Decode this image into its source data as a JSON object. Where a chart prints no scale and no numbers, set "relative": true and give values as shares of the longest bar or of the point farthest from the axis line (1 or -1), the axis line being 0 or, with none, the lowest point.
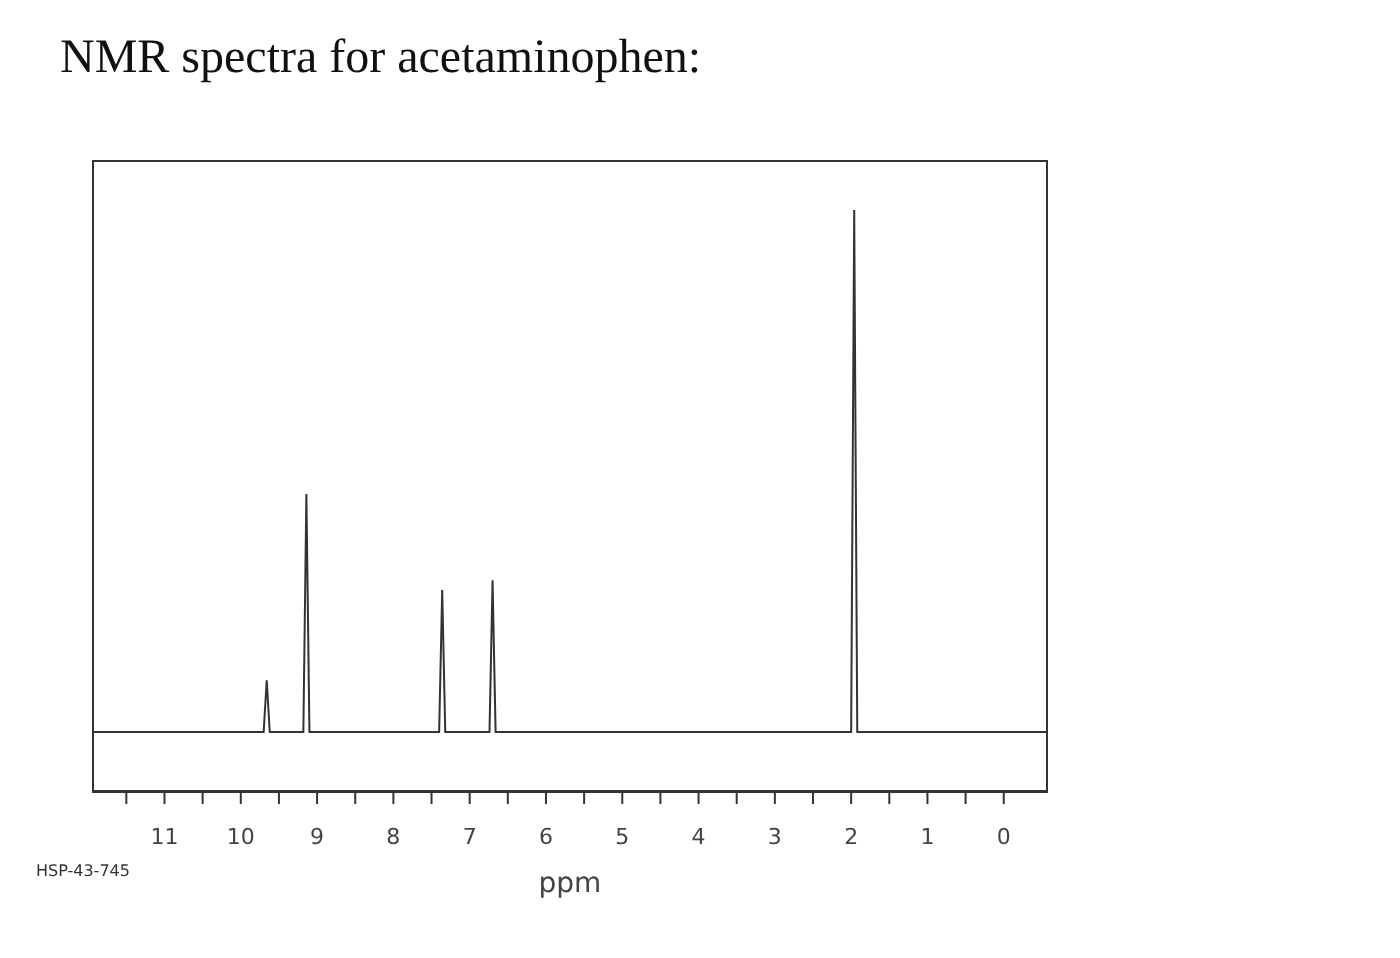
{
  "chart_data": {
    "type": "line",
    "title": "NMR spectra for acetaminophen:",
    "xlabel": "ppm",
    "annotations": [
      "HSP-43-745"
    ],
    "relative": true,
    "color": "#333333",
    "x": [
      11.95,
      9.7,
      9.66,
      9.62,
      9.18,
      9.14,
      9.1,
      7.4,
      7.36,
      7.32,
      6.74,
      6.7,
      6.66,
      2.0,
      1.96,
      1.92,
      -0.58
    ],
    "values": [
      0.103,
      0.103,
      0.192,
      0.103,
      0.103,
      0.512,
      0.103,
      0.103,
      0.347,
      0.103,
      0.103,
      0.364,
      0.103,
      0.103,
      1,
      0.103,
      0.103
    ],
    "xlim": [
      11.95,
      -0.58
    ],
    "xticks": [
      11,
      {
        "value": 10.5,
        "label": null
      },
      10,
      {
        "value": 9.5,
        "label": null
      },
      9,
      {
        "value": 8.5,
        "label": null
      },
      8,
      {
        "value": 7.5,
        "label": null
      },
      7,
      {
        "value": 6.5,
        "label": null
      },
      6,
      {
        "value": 5.5,
        "label": null
      },
      5,
      {
        "value": 4.5,
        "label": null
      },
      4,
      {
        "value": 3.5,
        "label": null
      },
      3,
      {
        "value": 2.5,
        "label": null
      },
      2,
      {
        "value": 1.5,
        "label": null
      },
      1,
      {
        "value": 0.5,
        "label": null
      },
      0,
      {
        "value": 11.5,
        "label": null
      }
    ]
  }
}
